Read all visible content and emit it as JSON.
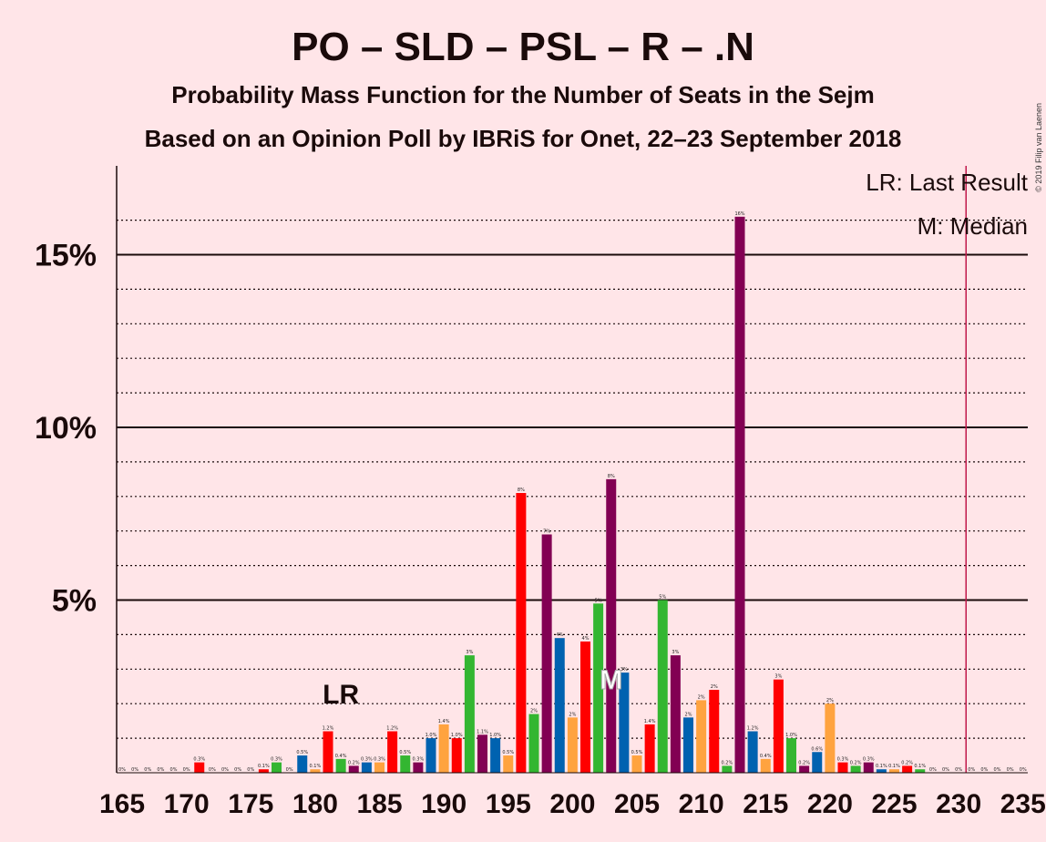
{
  "header": {
    "title": "PO – SLD – PSL – R – .N",
    "subtitle": "Probability Mass Function for the Number of Seats in the Sejm",
    "subtitle2": "Based on an Opinion Poll by IBRiS for Onet, 22–23 September 2018"
  },
  "copyright": "© 2019 Filip van Laenen",
  "legend": {
    "last_result": "LR: Last Result",
    "median": "M: Median"
  },
  "colors": {
    "background": "#FFE5E8",
    "red": "#FF0000",
    "green": "#33B631",
    "purple": "#820053",
    "blue": "#0062B0",
    "orange": "#FFA33F",
    "majority_line": "#C0184A"
  },
  "chart_data": {
    "type": "bar",
    "x_range": [
      165,
      235
    ],
    "ylim": [
      0,
      17.5
    ],
    "y_major_ticks": [
      5,
      10,
      15
    ],
    "y_tick_labels": [
      "5%",
      "10%",
      "15%"
    ],
    "x_tick_labels": [
      "165",
      "170",
      "175",
      "180",
      "185",
      "190",
      "195",
      "200",
      "205",
      "210",
      "215",
      "220",
      "225",
      "230",
      "235"
    ],
    "last_result": {
      "seats": 182,
      "label": "LR"
    },
    "median": {
      "seats": 203,
      "label": "M"
    },
    "majority_line": 231,
    "bar_color_cycle": [
      "red",
      "green",
      "purple",
      "blue",
      "orange"
    ],
    "seats": [
      165,
      166,
      167,
      168,
      169,
      170,
      171,
      172,
      173,
      174,
      175,
      176,
      177,
      178,
      179,
      180,
      181,
      182,
      183,
      184,
      185,
      186,
      187,
      188,
      189,
      190,
      191,
      192,
      193,
      194,
      195,
      196,
      197,
      198,
      199,
      200,
      201,
      202,
      203,
      204,
      205,
      206,
      207,
      208,
      209,
      210,
      211,
      212,
      213,
      214,
      215,
      216,
      217,
      218,
      219,
      220,
      221,
      222,
      223,
      224,
      225,
      226,
      227,
      228,
      229,
      230,
      231,
      232,
      233,
      234,
      235
    ],
    "values": [
      0,
      0,
      0,
      0,
      0,
      0,
      0.3,
      0,
      0,
      0,
      0,
      0.1,
      0.3,
      0,
      0.5,
      0.1,
      1.2,
      0.4,
      0.2,
      0.3,
      0.3,
      1.2,
      0.5,
      0.3,
      1.0,
      1.4,
      1.0,
      3.4,
      1.1,
      1.0,
      0.5,
      8.1,
      1.7,
      6.9,
      3.9,
      1.6,
      3.8,
      4.9,
      8.5,
      2.9,
      0.5,
      1.4,
      5.0,
      3.4,
      1.6,
      2.1,
      2.4,
      0.2,
      16.1,
      1.2,
      0.4,
      2.7,
      1.0,
      0.2,
      0.6,
      2.0,
      0.3,
      0.2,
      0.3,
      0.1,
      0.1,
      0.2,
      0.1,
      0,
      0,
      0,
      0,
      0,
      0,
      0,
      0
    ],
    "labels": [
      "0%",
      "0%",
      "0%",
      "0%",
      "0%",
      "0%",
      "0.3%",
      "0%",
      "0%",
      "0%",
      "0%",
      "0.1%",
      "0.3%",
      "0%",
      "0.5%",
      "0.1%",
      "1.2%",
      "0.4%",
      "0.2%",
      "0.3%",
      "0.3%",
      "1.2%",
      "0.5%",
      "0.3%",
      "1.0%",
      "1.4%",
      "1.0%",
      "3%",
      "1.1%",
      "1.0%",
      "0.5%",
      "8%",
      "2%",
      "7%",
      "4%",
      "2%",
      "4%",
      "5%",
      "8%",
      "3%",
      "0.5%",
      "1.4%",
      "5%",
      "3%",
      "2%",
      "2%",
      "2%",
      "0.2%",
      "16%",
      "1.2%",
      "0.4%",
      "3%",
      "1.0%",
      "0.2%",
      "0.6%",
      "2%",
      "0.3%",
      "0.2%",
      "0.3%",
      "0.1%",
      "0.1%",
      "0.2%",
      "0.1%",
      "0%",
      "0%",
      "0%",
      "0%",
      "0%",
      "0%",
      "0%",
      "0%"
    ]
  }
}
